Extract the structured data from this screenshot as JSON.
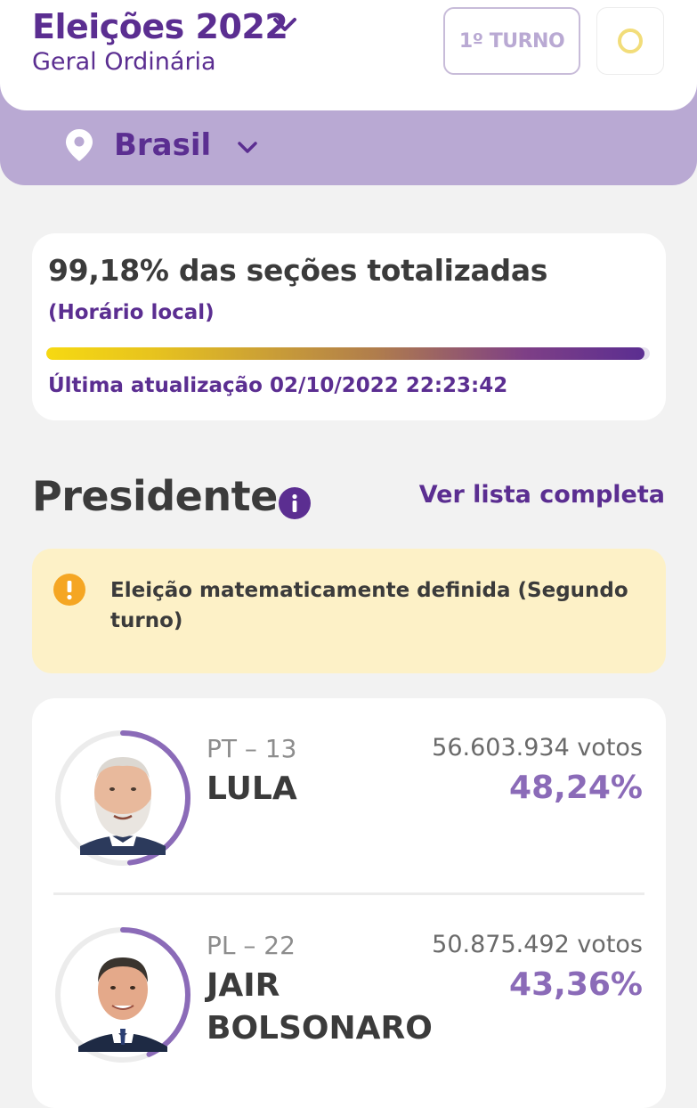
{
  "header": {
    "title": "Eleições 2022",
    "subtitle": "Geral Ordinária",
    "round_label": "1º TURNO"
  },
  "location": {
    "label": "Brasil"
  },
  "progress": {
    "title": "99,18% das seções totalizadas",
    "note": "(Horário local)",
    "value_percent": 99.18,
    "updated": "Última atualização 02/10/2022 22:23:42"
  },
  "section": {
    "title": "Presidente",
    "see_all": "Ver lista completa"
  },
  "alert": {
    "text": "Eleição matematicamente definida (Segundo turno)"
  },
  "candidates": [
    {
      "party": "PT – 13",
      "name": "LULA",
      "votes": "56.603.934 votos",
      "percent": "48,24%",
      "share": 0.4824
    },
    {
      "party": "PL – 22",
      "name": "JAIR BOLSONARO",
      "votes": "50.875.492 votos",
      "percent": "43,36%",
      "share": 0.4336
    }
  ],
  "colors": {
    "brand_purple": "#5b2e91",
    "band_purple": "#b9a9d3",
    "percent_purple": "#8b6bb8",
    "alert_bg": "#fdf1c7",
    "alert_icon": "#f5a623"
  }
}
